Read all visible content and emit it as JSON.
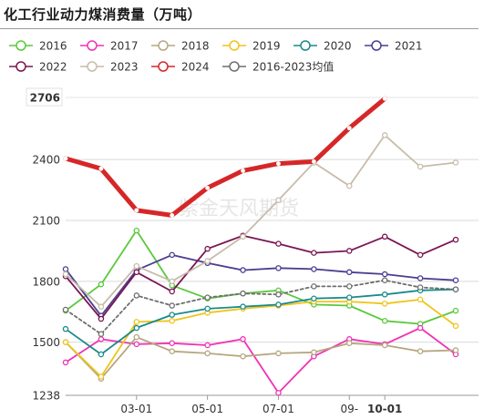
{
  "chart_data": {
    "type": "line",
    "title": "化工行业动力煤消费量（万吨）",
    "xlabel": "",
    "ylabel": "",
    "ylim": [
      1238,
      2706
    ],
    "y_ticks": [
      1238,
      1500,
      1800,
      2100,
      2400,
      2706
    ],
    "y_ticks_highlight": [
      2706
    ],
    "x_ticks": [
      {
        "label": "03-01",
        "x": 2
      },
      {
        "label": "05-01",
        "x": 4
      },
      {
        "label": "07-01",
        "x": 6
      },
      {
        "label": "09-",
        "x": 8
      },
      {
        "label": "10-01",
        "x": 9,
        "highlight": true
      }
    ],
    "x": [
      0,
      1,
      2,
      3,
      4,
      5,
      6,
      7,
      8,
      9,
      10,
      11
    ],
    "watermark": "紫金天风期货",
    "series": [
      {
        "name": "2016",
        "color": "#59c93c",
        "values": [
          1655,
          1785,
          2050,
          1780,
          1715,
          1740,
          1755,
          1685,
          1680,
          1605,
          1590,
          1655
        ]
      },
      {
        "name": "2017",
        "color": "#f032b6",
        "values": [
          1400,
          1515,
          1490,
          1495,
          1485,
          1515,
          1250,
          1430,
          1515,
          1490,
          1570,
          1440
        ]
      },
      {
        "name": "2018",
        "color": "#b5a77e",
        "values": [
          1500,
          1320,
          1525,
          1455,
          1445,
          1430,
          1445,
          1450,
          1495,
          1485,
          1455,
          1460
        ]
      },
      {
        "name": "2019",
        "color": "#f0c419",
        "values": [
          1500,
          1330,
          1600,
          1605,
          1645,
          1665,
          1680,
          1700,
          1700,
          1690,
          1710,
          1580
        ]
      },
      {
        "name": "2020",
        "color": "#1a8a8a",
        "values": [
          1565,
          1440,
          1570,
          1635,
          1665,
          1675,
          1685,
          1715,
          1720,
          1735,
          1755,
          1760
        ]
      },
      {
        "name": "2021",
        "color": "#4c3d8f",
        "values": [
          1860,
          1630,
          1855,
          1930,
          1890,
          1855,
          1865,
          1860,
          1845,
          1835,
          1815,
          1805
        ]
      },
      {
        "name": "2022",
        "color": "#7a1652",
        "values": [
          1825,
          1615,
          1845,
          1750,
          1960,
          2025,
          1985,
          1940,
          1950,
          2020,
          1930,
          2005
        ]
      },
      {
        "name": "2023",
        "color": "#c7bcaa",
        "values": [
          1835,
          1675,
          1875,
          1800,
          1900,
          2020,
          2200,
          2385,
          2270,
          2520,
          2365,
          2385
        ]
      },
      {
        "name": "2024",
        "color": "#d62728",
        "values": [
          2405,
          2355,
          2150,
          2125,
          2260,
          2345,
          2380,
          2390,
          2555,
          2700,
          null,
          null
        ],
        "bold": true
      },
      {
        "name": "2016-2023均值",
        "color": "#6e6e6e",
        "values": [
          1660,
          1540,
          1730,
          1680,
          1720,
          1740,
          1735,
          1775,
          1775,
          1805,
          1770,
          1760
        ],
        "dashed": true
      }
    ],
    "legend_position": "top",
    "grid": "horizontal"
  }
}
